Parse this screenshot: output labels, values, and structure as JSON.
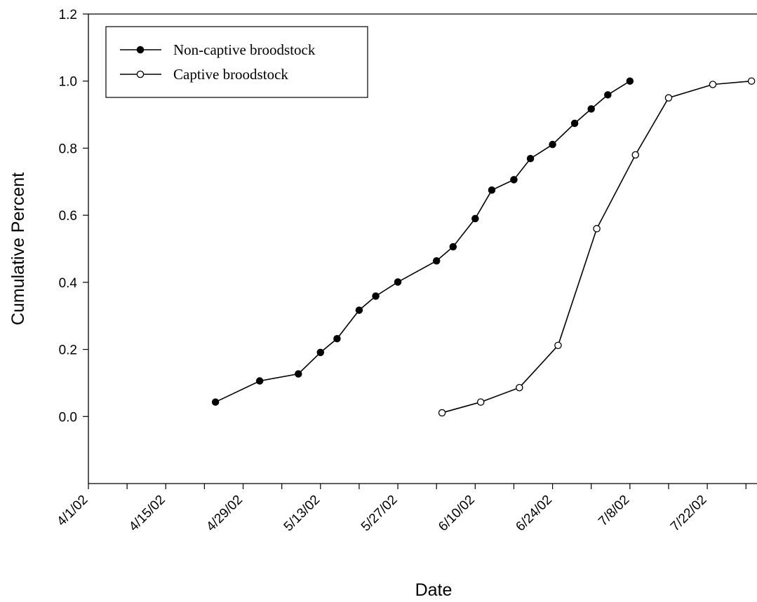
{
  "chart_data": {
    "type": "line",
    "xlabel": "Date",
    "ylabel": "Cumulative Percent",
    "x_axis": {
      "type": "date",
      "min": "2002-04-01",
      "max": "2002-07-31",
      "major_ticks": [
        "2002-04-01",
        "2002-04-15",
        "2002-04-29",
        "2002-05-13",
        "2002-05-27",
        "2002-06-10",
        "2002-06-24",
        "2002-07-08",
        "2002-07-22"
      ],
      "minor_ticks": [
        "2002-04-08",
        "2002-04-22",
        "2002-05-06",
        "2002-05-20",
        "2002-06-03",
        "2002-06-17",
        "2002-07-01",
        "2002-07-15",
        "2002-07-29"
      ],
      "tick_labels": [
        "4/1/02",
        "4/15/02",
        "4/29/02",
        "5/13/02",
        "5/27/02",
        "6/10/02",
        "6/24/02",
        "7/8/02",
        "7/22/02"
      ]
    },
    "y_axis": {
      "min": -0.2,
      "max": 1.2,
      "ticks": [
        0.0,
        0.2,
        0.4,
        0.6,
        0.8,
        1.0,
        1.2
      ],
      "tick_labels": [
        "0.0",
        "0.2",
        "0.4",
        "0.6",
        "0.8",
        "1.0",
        "1.2"
      ]
    },
    "grid": false,
    "legend": {
      "position": "top-left"
    },
    "series": [
      {
        "name": "Non-captive broodstock",
        "marker": "filled-circle",
        "points": [
          {
            "x": "2002-04-24",
            "y": 0.043
          },
          {
            "x": "2002-05-02",
            "y": 0.106
          },
          {
            "x": "2002-05-09",
            "y": 0.127
          },
          {
            "x": "2002-05-13",
            "y": 0.191
          },
          {
            "x": "2002-05-16",
            "y": 0.232
          },
          {
            "x": "2002-05-20",
            "y": 0.317
          },
          {
            "x": "2002-05-23",
            "y": 0.359
          },
          {
            "x": "2002-05-27",
            "y": 0.401
          },
          {
            "x": "2002-06-03",
            "y": 0.464
          },
          {
            "x": "2002-06-06",
            "y": 0.506
          },
          {
            "x": "2002-06-10",
            "y": 0.59
          },
          {
            "x": "2002-06-13",
            "y": 0.675
          },
          {
            "x": "2002-06-17",
            "y": 0.706
          },
          {
            "x": "2002-06-20",
            "y": 0.769
          },
          {
            "x": "2002-06-24",
            "y": 0.811
          },
          {
            "x": "2002-06-28",
            "y": 0.874
          },
          {
            "x": "2002-07-01",
            "y": 0.917
          },
          {
            "x": "2002-07-04",
            "y": 0.959
          },
          {
            "x": "2002-07-08",
            "y": 1.0
          }
        ]
      },
      {
        "name": "Captive broodstock",
        "marker": "open-circle",
        "points": [
          {
            "x": "2002-06-04",
            "y": 0.011
          },
          {
            "x": "2002-06-11",
            "y": 0.043
          },
          {
            "x": "2002-06-18",
            "y": 0.086
          },
          {
            "x": "2002-06-25",
            "y": 0.212
          },
          {
            "x": "2002-07-02",
            "y": 0.56
          },
          {
            "x": "2002-07-09",
            "y": 0.78
          },
          {
            "x": "2002-07-15",
            "y": 0.95
          },
          {
            "x": "2002-07-23",
            "y": 0.99
          },
          {
            "x": "2002-07-30",
            "y": 1.0
          }
        ]
      }
    ]
  }
}
